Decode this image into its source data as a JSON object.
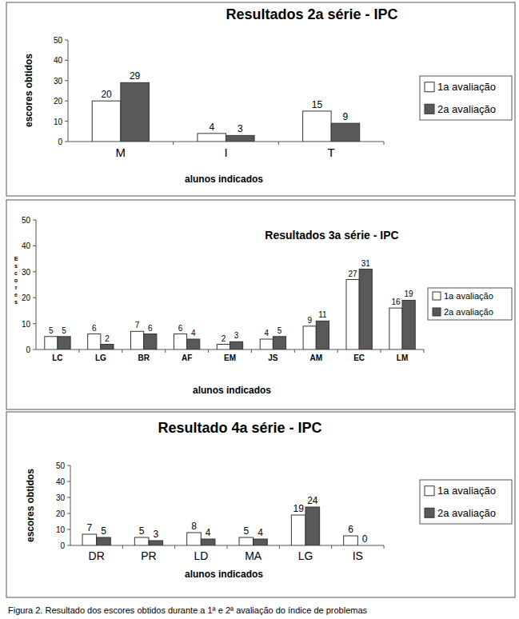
{
  "chart_data": [
    {
      "type": "bar",
      "title": "Resultados 2a série - IPC",
      "x_label": "alunos indicados",
      "y_label": "escores obtidos",
      "categories": [
        "M",
        "I",
        "T"
      ],
      "series": [
        {
          "name": "1a avaliação",
          "color": "#ffffff",
          "values": [
            20,
            4,
            15
          ]
        },
        {
          "name": "2a avaliação",
          "color": "#595959",
          "values": [
            29,
            3,
            9
          ]
        }
      ],
      "ylim": [
        0,
        50
      ],
      "yticks": [
        0,
        10,
        20,
        30,
        40,
        50
      ],
      "grid": false,
      "data_labels": true,
      "legend": "right"
    },
    {
      "type": "bar",
      "title": "Resultados 3a série - IPC",
      "x_label": "alunos indicados",
      "y_label": "Escores",
      "categories": [
        "LC",
        "LG",
        "BR",
        "AF",
        "EM",
        "JS",
        "AM",
        "EC",
        "LM"
      ],
      "series": [
        {
          "name": "1a avaliação",
          "color": "#ffffff",
          "values": [
            5,
            6,
            7,
            6,
            2,
            4,
            9,
            27,
            16
          ]
        },
        {
          "name": "2a avaliação",
          "color": "#595959",
          "values": [
            5,
            2,
            6,
            4,
            3,
            5,
            11,
            31,
            19
          ]
        }
      ],
      "ylim": [
        0,
        50
      ],
      "yticks": [
        0,
        10,
        20,
        30,
        40,
        50
      ],
      "grid": false,
      "data_labels": true,
      "legend": "right"
    },
    {
      "type": "bar",
      "title": "Resultado 4a série - IPC",
      "x_label": "alunos indicados",
      "y_label": "escores obtidos",
      "categories": [
        "DR",
        "PR",
        "LD",
        "MA",
        "LG",
        "IS"
      ],
      "series": [
        {
          "name": "1a avaliação",
          "color": "#ffffff",
          "values": [
            7,
            5,
            8,
            5,
            19,
            6
          ]
        },
        {
          "name": "2a avaliação",
          "color": "#595959",
          "values": [
            5,
            3,
            4,
            4,
            24,
            0
          ]
        }
      ],
      "ylim": [
        0,
        50
      ],
      "yticks": [
        0,
        10,
        20,
        30,
        40,
        50
      ],
      "grid": false,
      "data_labels": true,
      "legend": "right"
    }
  ],
  "caption": "Figura 2. Resultado dos escores obtidos durante a 1ª e 2ª avaliação do índice de problemas"
}
